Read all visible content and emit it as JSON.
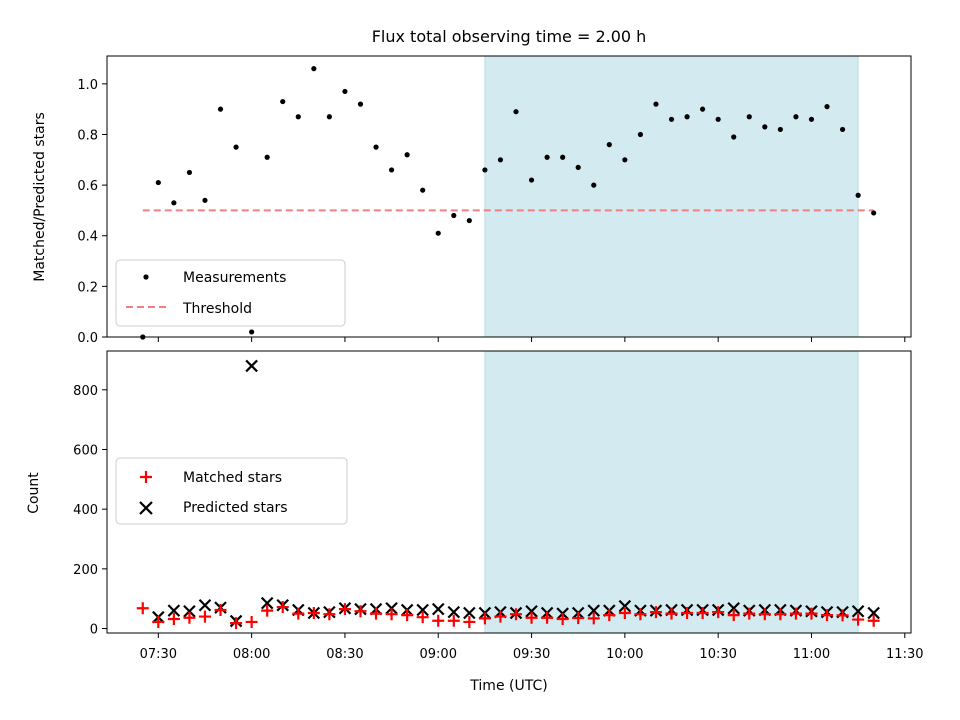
{
  "chart_data": [
    {
      "type": "scatter",
      "title": "Flux total observing time = 2.00 h",
      "xlabel": "",
      "ylabel": "Matched/Predicted stars",
      "ylim": [
        0,
        1.11
      ],
      "yticks": [
        "0.0",
        "0.2",
        "0.4",
        "0.6",
        "0.8",
        "1.0"
      ],
      "highlight_span": {
        "start": "09:15",
        "end": "11:15",
        "color": "#d3ebf0"
      },
      "legend": {
        "placement": "lower left",
        "entries": [
          "Measurements",
          "Threshold"
        ]
      },
      "threshold": {
        "name": "Threshold",
        "value": 0.5,
        "x_start": "07:25",
        "x_end": "11:20",
        "color": "#f08080"
      },
      "series": [
        {
          "name": "Measurements",
          "x": [
            "07:25",
            "07:30",
            "07:35",
            "07:40",
            "07:45",
            "07:50",
            "07:55",
            "08:00",
            "08:05",
            "08:10",
            "08:15",
            "08:20",
            "08:25",
            "08:30",
            "08:35",
            "08:40",
            "08:45",
            "08:50",
            "08:55",
            "09:00",
            "09:05",
            "09:10",
            "09:15",
            "09:20",
            "09:25",
            "09:30",
            "09:35",
            "09:40",
            "09:45",
            "09:50",
            "09:55",
            "10:00",
            "10:05",
            "10:10",
            "10:15",
            "10:20",
            "10:25",
            "10:30",
            "10:35",
            "10:40",
            "10:45",
            "10:50",
            "10:55",
            "11:00",
            "11:05",
            "11:10",
            "11:15",
            "11:20"
          ],
          "y": [
            0.0,
            0.61,
            0.53,
            0.65,
            0.54,
            0.9,
            0.75,
            0.02,
            0.71,
            0.93,
            0.87,
            1.06,
            0.87,
            0.97,
            0.92,
            0.75,
            0.66,
            0.72,
            0.58,
            0.41,
            0.48,
            0.46,
            0.66,
            0.7,
            0.89,
            0.62,
            0.71,
            0.71,
            0.67,
            0.6,
            0.76,
            0.7,
            0.8,
            0.92,
            0.86,
            0.87,
            0.9,
            0.86,
            0.79,
            0.87,
            0.83,
            0.82,
            0.87,
            0.86,
            0.91,
            0.82,
            0.56,
            0.49
          ]
        }
      ]
    },
    {
      "type": "scatter",
      "title": "",
      "xlabel": "Time (UTC)",
      "ylabel": "Count",
      "ylim": [
        -15,
        930
      ],
      "yticks": [
        "0",
        "200",
        "400",
        "600",
        "800"
      ],
      "xticks": [
        "07:30",
        "08:00",
        "08:30",
        "09:00",
        "09:30",
        "10:00",
        "10:30",
        "11:00",
        "11:30"
      ],
      "highlight_span": {
        "start": "09:15",
        "end": "11:15",
        "color": "#d3ebf0"
      },
      "legend": {
        "placement": "center left",
        "entries": [
          "Matched stars",
          "Predicted stars"
        ]
      },
      "series": [
        {
          "name": "Matched stars",
          "marker": "+",
          "color": "#ff0000",
          "x": [
            "07:25",
            "07:30",
            "07:35",
            "07:40",
            "07:45",
            "07:50",
            "07:55",
            "08:00",
            "08:05",
            "08:10",
            "08:15",
            "08:20",
            "08:25",
            "08:30",
            "08:35",
            "08:40",
            "08:45",
            "08:50",
            "08:55",
            "09:00",
            "09:05",
            "09:10",
            "09:15",
            "09:20",
            "09:25",
            "09:30",
            "09:35",
            "09:40",
            "09:45",
            "09:50",
            "09:55",
            "10:00",
            "10:05",
            "10:10",
            "10:15",
            "10:20",
            "10:25",
            "10:30",
            "10:35",
            "10:40",
            "10:45",
            "10:50",
            "10:55",
            "11:00",
            "11:05",
            "11:10",
            "11:15",
            "11:20"
          ],
          "y": [
            68,
            22,
            32,
            36,
            40,
            62,
            18,
            22,
            60,
            72,
            50,
            52,
            48,
            65,
            58,
            50,
            48,
            45,
            38,
            26,
            26,
            22,
            34,
            40,
            48,
            36,
            36,
            32,
            35,
            34,
            45,
            52,
            48,
            55,
            50,
            52,
            52,
            55,
            45,
            50,
            48,
            48,
            50,
            50,
            45,
            44,
            30,
            26
          ]
        },
        {
          "name": "Predicted stars",
          "marker": "x",
          "color": "#000000",
          "x": [
            "07:30",
            "07:35",
            "07:40",
            "07:45",
            "07:50",
            "07:55",
            "08:00",
            "08:05",
            "08:10",
            "08:15",
            "08:20",
            "08:25",
            "08:30",
            "08:35",
            "08:40",
            "08:45",
            "08:50",
            "08:55",
            "09:00",
            "09:05",
            "09:10",
            "09:15",
            "09:20",
            "09:25",
            "09:30",
            "09:35",
            "09:40",
            "09:45",
            "09:50",
            "09:55",
            "10:00",
            "10:05",
            "10:10",
            "10:15",
            "10:20",
            "10:25",
            "10:30",
            "10:35",
            "10:40",
            "10:45",
            "10:50",
            "10:55",
            "11:00",
            "11:05",
            "11:10",
            "11:15",
            "11:20"
          ],
          "y": [
            38,
            60,
            58,
            78,
            70,
            25,
            880,
            85,
            78,
            62,
            52,
            55,
            68,
            65,
            65,
            68,
            62,
            62,
            65,
            55,
            52,
            52,
            55,
            52,
            58,
            52,
            50,
            52,
            60,
            60,
            75,
            60,
            60,
            62,
            62,
            62,
            62,
            68,
            60,
            62,
            62,
            60,
            58,
            55,
            55,
            58,
            52
          ]
        }
      ]
    }
  ]
}
